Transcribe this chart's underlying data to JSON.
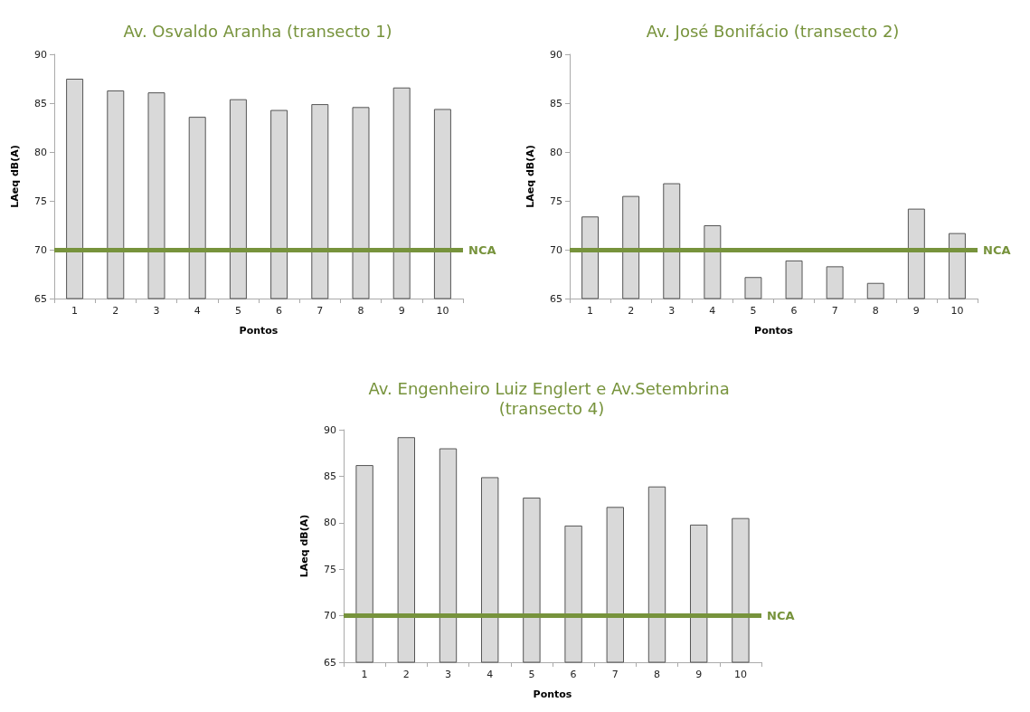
{
  "chart_data": [
    {
      "type": "bar",
      "title": "Av. Osvaldo Aranha (transecto 1)",
      "xlabel": "Pontos",
      "ylabel": "LAeq dB(A)",
      "categories": [
        "1",
        "2",
        "3",
        "4",
        "5",
        "6",
        "7",
        "8",
        "9",
        "10"
      ],
      "values": [
        87.5,
        86.3,
        86.1,
        83.6,
        85.4,
        84.3,
        84.9,
        84.6,
        86.6,
        84.4
      ],
      "color": "#d9d9d9",
      "ylim": [
        65,
        90
      ],
      "yticks": [
        65,
        70,
        75,
        80,
        85,
        90
      ],
      "grid": false,
      "ref_lines": [
        {
          "axis": "y",
          "value": 70,
          "label": "NCA",
          "color": "#77933c",
          "line_style": "solid"
        }
      ]
    },
    {
      "type": "bar",
      "title": "Av. José Bonifácio (transecto 2)",
      "xlabel": "Pontos",
      "ylabel": "LAeq dB(A)",
      "categories": [
        "1",
        "2",
        "3",
        "4",
        "5",
        "6",
        "7",
        "8",
        "9",
        "10"
      ],
      "values": [
        73.4,
        75.5,
        76.8,
        72.5,
        67.2,
        68.9,
        68.3,
        66.6,
        74.2,
        71.7
      ],
      "color": "#d9d9d9",
      "ylim": [
        65,
        90
      ],
      "yticks": [
        65,
        70,
        75,
        80,
        85,
        90
      ],
      "grid": false,
      "ref_lines": [
        {
          "axis": "y",
          "value": 70,
          "label": "NCA",
          "color": "#77933c",
          "line_style": "solid"
        }
      ]
    },
    {
      "type": "bar",
      "title": "Av. Engenheiro Luiz Englert e Av.Setembrina (transecto 4)",
      "xlabel": "Pontos",
      "ylabel": "LAeq dB(A)",
      "categories": [
        "1",
        "2",
        "3",
        "4",
        "5",
        "6",
        "7",
        "8",
        "9",
        "10"
      ],
      "values": [
        86.2,
        89.2,
        88.0,
        84.9,
        82.7,
        79.7,
        81.7,
        83.9,
        79.8,
        80.5
      ],
      "color": "#d9d9d9",
      "ylim": [
        65,
        90
      ],
      "yticks": [
        65,
        70,
        75,
        80,
        85,
        90
      ],
      "grid": false,
      "ref_lines": [
        {
          "axis": "y",
          "value": 70,
          "label": "NCA",
          "color": "#77933c",
          "line_style": "solid"
        }
      ]
    }
  ]
}
